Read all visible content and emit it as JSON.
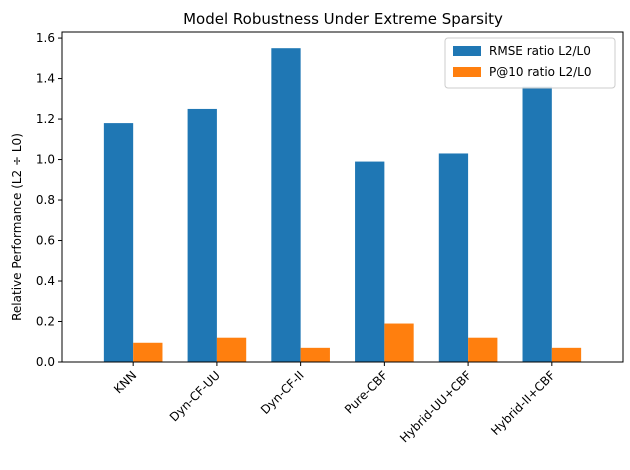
{
  "chart_data": {
    "type": "bar",
    "title": "Model Robustness Under Extreme Sparsity",
    "xlabel": "",
    "ylabel": "Relative Performance (L2 ÷ L0)",
    "categories": [
      "KNN",
      "Dyn-CF-UU",
      "Dyn-CF-II",
      "Pure-CBF",
      "Hybrid-UU+CBF",
      "Hybrid-II+CBF"
    ],
    "series": [
      {
        "name": "RMSE ratio L2/L0",
        "color": "#1f77b4",
        "values": [
          1.18,
          1.25,
          1.55,
          0.99,
          1.03,
          1.36
        ]
      },
      {
        "name": "P@10 ratio L2/L0",
        "color": "#ff7f0e",
        "values": [
          0.095,
          0.12,
          0.07,
          0.19,
          0.12,
          0.07
        ]
      }
    ],
    "ylim": [
      0,
      1.63
    ],
    "yticks": [
      0.0,
      0.2,
      0.4,
      0.6,
      0.8,
      1.0,
      1.2,
      1.4,
      1.6
    ],
    "ytick_labels": [
      "0.0",
      "0.2",
      "0.4",
      "0.6",
      "0.8",
      "1.0",
      "1.2",
      "1.4",
      "1.6"
    ],
    "grid": false,
    "legend_position": "top-right"
  }
}
